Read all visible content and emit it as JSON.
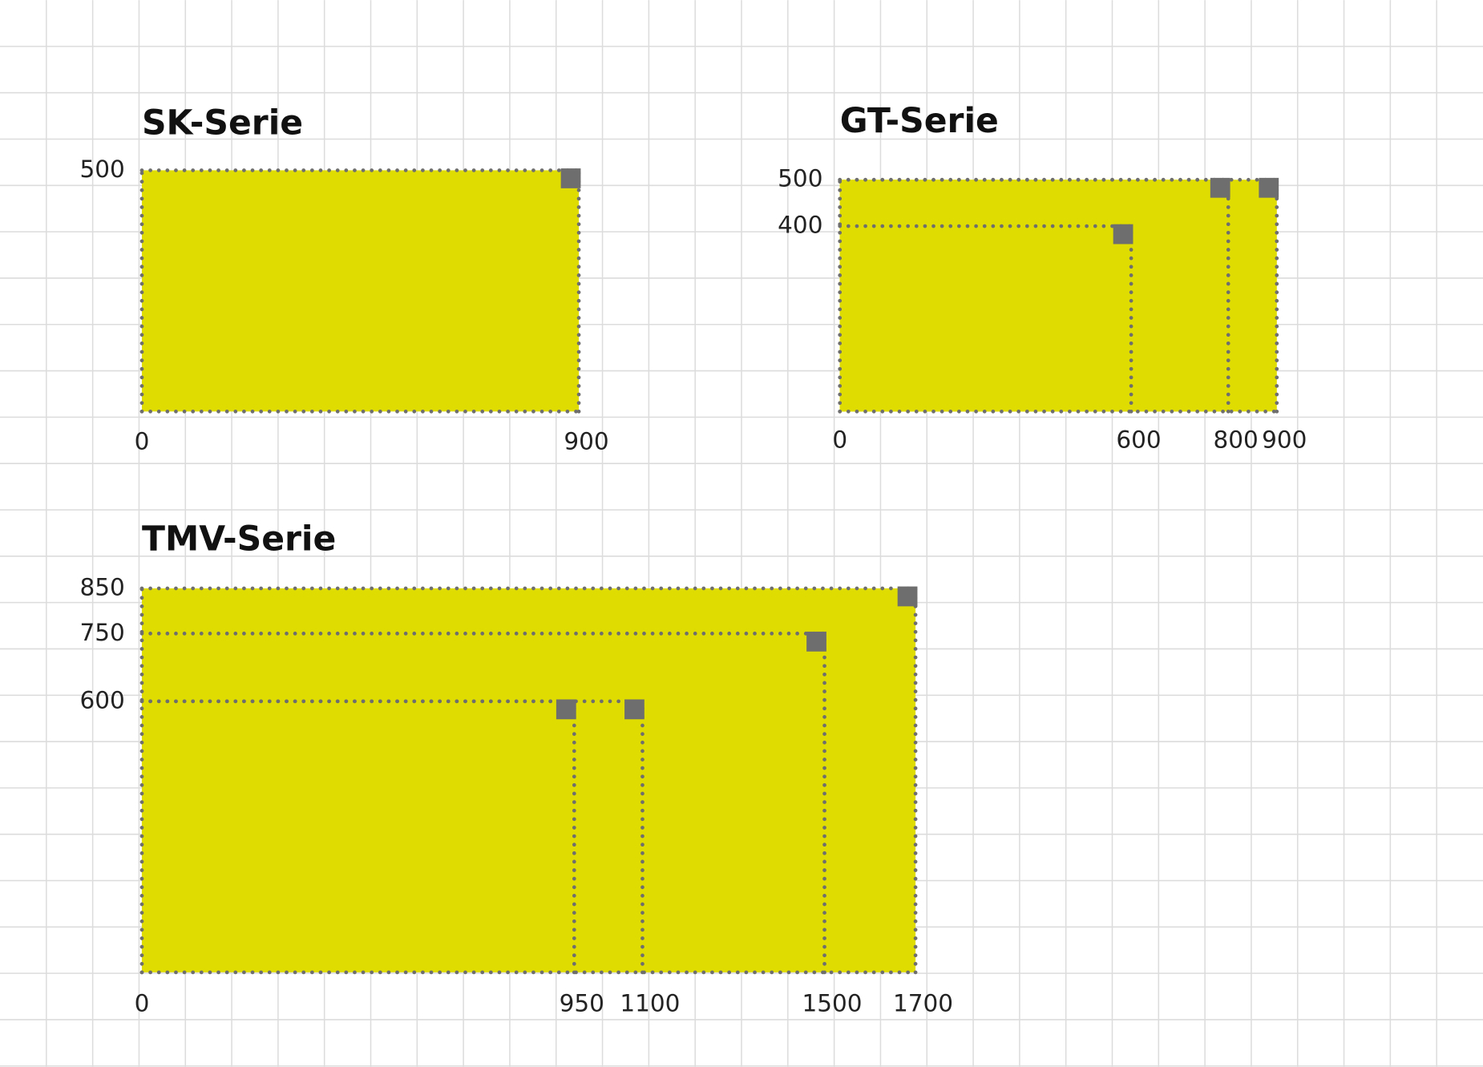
{
  "chart_data": [
    {
      "type": "size-range",
      "title": "SK-Serie",
      "xlim": [
        0,
        900
      ],
      "ylim": [
        0,
        500
      ],
      "xticks": [
        0,
        900
      ],
      "yticks": [
        500
      ],
      "widths": [
        900
      ],
      "heights": [
        500
      ],
      "color": "#dedc00",
      "marker_color": "#6e6e6e"
    },
    {
      "type": "size-range",
      "title": "GT-Serie",
      "xlim": [
        0,
        900
      ],
      "ylim": [
        0,
        500
      ],
      "xticks": [
        0,
        600,
        800,
        900
      ],
      "yticks": [
        400,
        500
      ],
      "widths": [
        600,
        800,
        900
      ],
      "heights": [
        400,
        500,
        500
      ],
      "color": "#dedc00",
      "marker_color": "#6e6e6e"
    },
    {
      "type": "size-range",
      "title": "TMV-Serie",
      "xlim": [
        0,
        1700
      ],
      "ylim": [
        0,
        850
      ],
      "xticks": [
        0,
        950,
        1100,
        1500,
        1700
      ],
      "yticks": [
        600,
        750,
        850
      ],
      "widths": [
        950,
        1100,
        1500,
        1700
      ],
      "heights": [
        600,
        600,
        750,
        850
      ],
      "color": "#dedc00",
      "marker_color": "#6e6e6e"
    }
  ]
}
